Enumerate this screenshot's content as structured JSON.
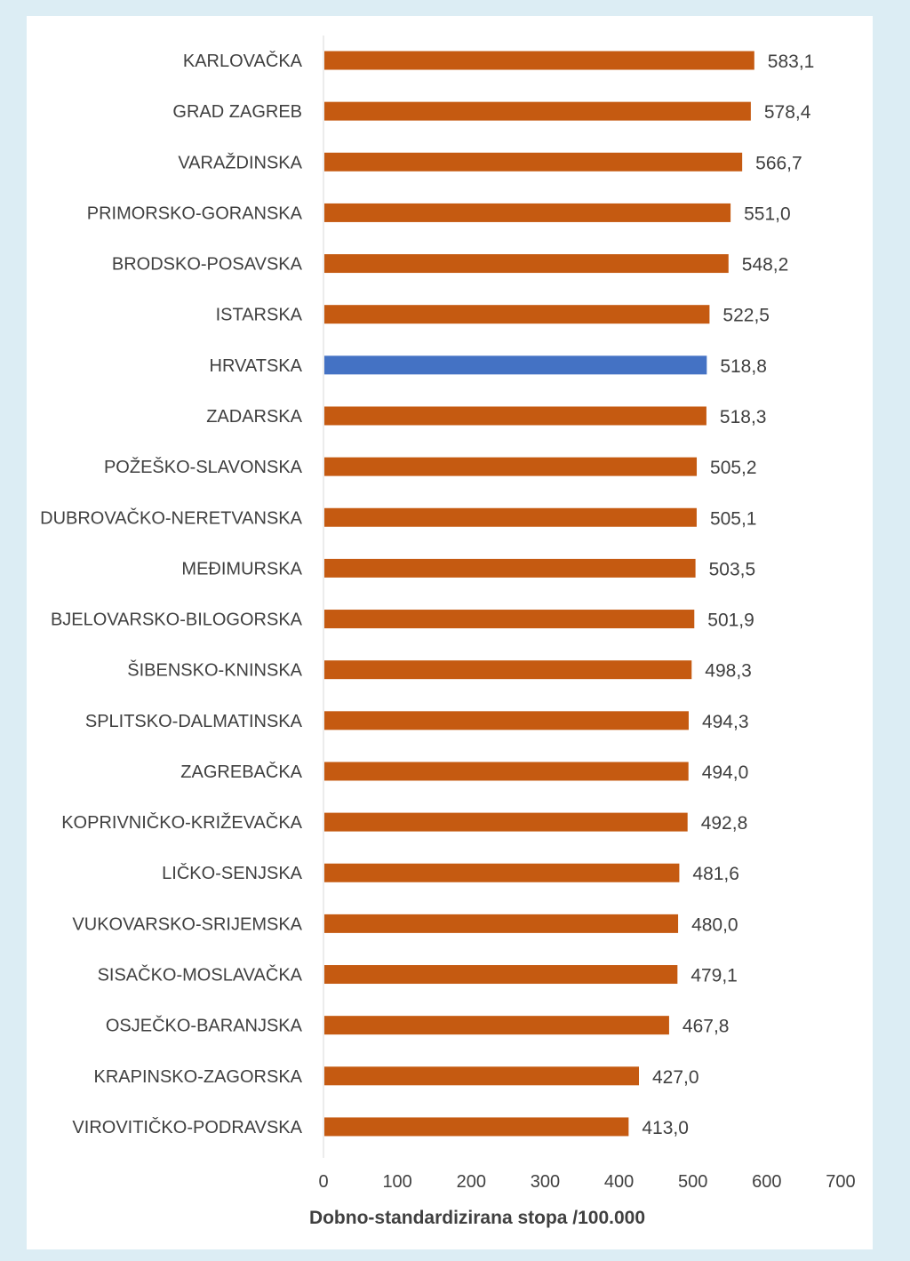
{
  "chart_data": {
    "type": "bar",
    "orientation": "horizontal",
    "categories": [
      "KARLOVAČKA",
      "GRAD ZAGREB",
      "VARAŽDINSKA",
      "PRIMORSKO-GORANSKA",
      "BRODSKO-POSAVSKA",
      "ISTARSKA",
      "HRVATSKA",
      "ZADARSKA",
      "POŽEŠKO-SLAVONSKA",
      "DUBROVAČKO-NERETVANSKA",
      "MEĐIMURSKA",
      "BJELOVARSKO-BILOGORSKA",
      "ŠIBENSKO-KNINSKA",
      "SPLITSKO-DALMATINSKA",
      "ZAGREBAČKA",
      "KOPRIVNIČKO-KRIŽEVAČKA",
      "LIČKO-SENJSKA",
      "VUKOVARSKO-SRIJEMSKA",
      "SISAČKO-MOSLAVAČKA",
      "OSJEČKO-BARANJSKA",
      "KRAPINSKO-ZAGORSKA",
      "VIROVITIČKO-PODRAVSKA"
    ],
    "values": [
      583.1,
      578.4,
      566.7,
      551.0,
      548.2,
      522.5,
      518.8,
      518.3,
      505.2,
      505.1,
      503.5,
      501.9,
      498.3,
      494.3,
      494.0,
      492.8,
      481.6,
      480.0,
      479.1,
      467.8,
      427.0,
      413.0
    ],
    "value_labels": [
      "583,1",
      "578,4",
      "566,7",
      "551,0",
      "548,2",
      "522,5",
      "518,8",
      "518,3",
      "505,2",
      "505,1",
      "503,5",
      "501,9",
      "498,3",
      "494,3",
      "494,0",
      "492,8",
      "481,6",
      "480,0",
      "479,1",
      "467,8",
      "427,0",
      "413,0"
    ],
    "highlight_category": "HRVATSKA",
    "xlim": [
      0,
      700
    ],
    "xticks": [
      0,
      100,
      200,
      300,
      400,
      500,
      600,
      700
    ],
    "title": "",
    "xlabel": "Dobno-standardizirana stopa /100.000",
    "ylabel": "",
    "grid": false,
    "colors": {
      "bar": "#c55a11",
      "highlight": "#4472c4",
      "background": "#ffffff",
      "page": "#dcedf4",
      "axis": "#d9d9d9",
      "text": "#404040"
    }
  }
}
